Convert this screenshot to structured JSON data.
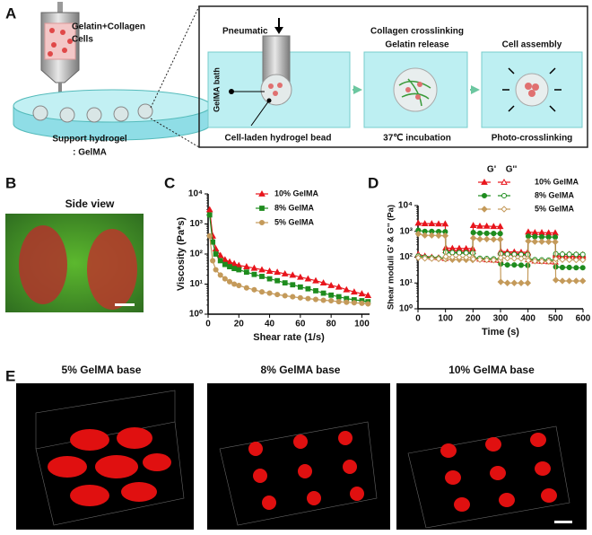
{
  "panel_labels": [
    "A",
    "B",
    "C",
    "D",
    "E"
  ],
  "panel_a": {
    "ink": [
      "Gelatin+Collagen",
      "Cells"
    ],
    "support": [
      "Support hydrogel",
      ": GelMA"
    ],
    "pneumatic": "Pneumatic",
    "bath": "GelMA bath",
    "bead": "Cell-laden hydrogel bead",
    "step2": [
      "Collagen crosslinking",
      "Gelatin release"
    ],
    "step2_caption": "37℃ incubation",
    "step3": "Cell assembly",
    "step3_caption": "Photo-crosslinking"
  },
  "panel_b": {
    "title": "Side view"
  },
  "panel_e": {
    "titles": [
      "5% GelMA base",
      "8% GelMA base",
      "10% GelMA base"
    ]
  },
  "chart_data": [
    {
      "type": "line",
      "xlabel": "Shear rate (1/s)",
      "ylabel": "Viscosity (Pa*s)",
      "log_y": true,
      "xlim": [
        0,
        105
      ],
      "xticks": [
        0,
        20,
        40,
        60,
        80,
        100
      ],
      "ylim": [
        1,
        10000
      ],
      "yticks": [
        {
          "value": 1,
          "label": "10⁰"
        },
        {
          "value": 10,
          "label": "10¹"
        },
        {
          "value": 100,
          "label": "10²"
        },
        {
          "value": 1000,
          "label": "10³"
        },
        {
          "value": 10000,
          "label": "10⁴"
        }
      ],
      "x": [
        1,
        3,
        5,
        8,
        11,
        14,
        17,
        20,
        25,
        30,
        35,
        40,
        45,
        50,
        55,
        60,
        65,
        70,
        75,
        80,
        85,
        90,
        95,
        100,
        104
      ],
      "series": [
        {
          "name": "10% GelMA",
          "color": "#e8151c",
          "marker": "triangle",
          "values": [
            3000,
            400,
            150,
            90,
            65,
            55,
            48,
            42,
            38,
            34,
            30,
            27,
            25,
            22,
            20,
            17,
            15,
            13,
            11,
            9,
            8,
            6.5,
            5.5,
            4.8,
            4.2
          ]
        },
        {
          "name": "8% GelMA",
          "color": "#1e8c1e",
          "marker": "square",
          "values": [
            2000,
            250,
            100,
            60,
            45,
            38,
            33,
            30,
            25,
            21,
            18,
            15,
            13,
            11,
            9.5,
            8,
            7,
            6,
            5,
            4.3,
            3.8,
            3.3,
            3,
            2.8,
            2.6
          ]
        },
        {
          "name": "5% GelMA",
          "color": "#c49a5a",
          "marker": "circle",
          "values": [
            400,
            60,
            30,
            20,
            15,
            12,
            10,
            9,
            7.5,
            6.5,
            5.5,
            5,
            4.5,
            4.1,
            3.8,
            3.5,
            3.3,
            3.1,
            2.9,
            2.8,
            2.6,
            2.5,
            2.4,
            2.3,
            2.2
          ]
        }
      ]
    },
    {
      "type": "line",
      "xlabel": "Time (s)",
      "ylabel": "Shear moduli G' & G'' (Pa)",
      "log_y": true,
      "legend_headers": [
        "G'",
        "G''"
      ],
      "xlim": [
        0,
        600
      ],
      "xticks": [
        0,
        100,
        200,
        300,
        400,
        500,
        600
      ],
      "ylim": [
        1,
        10000
      ],
      "yticks": [
        {
          "value": 1,
          "label": "10⁰"
        },
        {
          "value": 10,
          "label": "10¹"
        },
        {
          "value": 100,
          "label": "10²"
        },
        {
          "value": 1000,
          "label": "10³"
        },
        {
          "value": 10000,
          "label": "10⁴"
        }
      ],
      "x": [
        1,
        25,
        50,
        75,
        99,
        101,
        125,
        150,
        175,
        199,
        201,
        225,
        250,
        275,
        299,
        301,
        325,
        350,
        375,
        399,
        401,
        425,
        450,
        475,
        499,
        501,
        525,
        550,
        575,
        599
      ],
      "series": [
        {
          "name": "10% GelMA",
          "color": "#e8151c",
          "marker": "triangle",
          "values": [
            2100,
            2000,
            2000,
            1950,
            1950,
            230,
            220,
            220,
            215,
            215,
            1700,
            1600,
            1600,
            1550,
            1550,
            170,
            160,
            160,
            155,
            155,
            950,
            900,
            900,
            880,
            880,
            115,
            110,
            110,
            108,
            108
          ],
          "values2": [
            130,
            110,
            100,
            95,
            90,
            180,
            175,
            170,
            170,
            165,
            95,
            85,
            80,
            78,
            75,
            150,
            145,
            140,
            140,
            138,
            80,
            72,
            70,
            68,
            66,
            135,
            130,
            128,
            126,
            125
          ]
        },
        {
          "name": "8% GelMA",
          "color": "#1e8c1e",
          "marker": "circle",
          "values": [
            1100,
            1000,
            1000,
            980,
            970,
            160,
            150,
            150,
            148,
            146,
            900,
            850,
            840,
            830,
            820,
            55,
            50,
            50,
            49,
            48,
            650,
            620,
            610,
            600,
            600,
            42,
            40,
            40,
            39,
            39
          ],
          "values2": [
            110,
            100,
            95,
            92,
            90,
            155,
            150,
            148,
            146,
            145,
            95,
            90,
            88,
            86,
            85,
            135,
            130,
            128,
            127,
            126,
            85,
            80,
            78,
            77,
            76,
            135,
            130,
            129,
            128,
            127
          ]
        },
        {
          "name": "5% GelMA",
          "color": "#c49a5a",
          "marker": "diamond",
          "values": [
            800,
            700,
            700,
            690,
            680,
            85,
            80,
            80,
            79,
            78,
            550,
            500,
            500,
            490,
            490,
            11,
            10,
            10,
            10,
            10,
            420,
            400,
            400,
            395,
            390,
            13,
            12,
            12,
            12,
            12
          ],
          "values2": [
            95,
            90,
            88,
            86,
            85,
            105,
            100,
            99,
            98,
            97,
            85,
            80,
            78,
            77,
            76,
            95,
            90,
            89,
            88,
            88,
            75,
            70,
            69,
            68,
            68,
            85,
            80,
            79,
            78,
            78
          ]
        }
      ]
    }
  ]
}
